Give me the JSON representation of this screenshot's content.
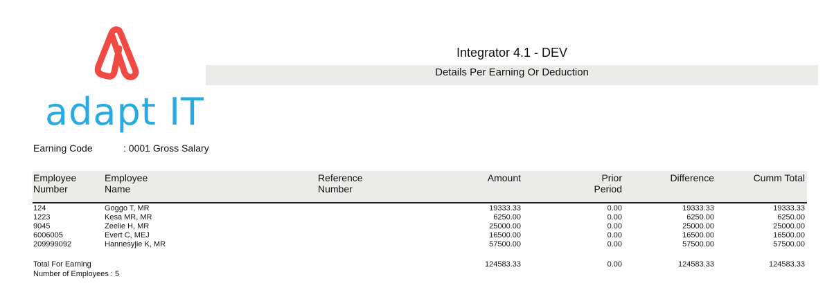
{
  "logo": {
    "text": "adapt IT",
    "colors": {
      "mark": "#ef4b43",
      "wordmark": "#29abe2"
    }
  },
  "header": {
    "title": "Integrator 4.1 - DEV",
    "subtitle": "Details Per Earning Or Deduction"
  },
  "earning": {
    "label": "Earning Code",
    "value": ": 0001 Gross Salary"
  },
  "table": {
    "columns": [
      [
        "Employee",
        "Number"
      ],
      [
        "Employee",
        "Name"
      ],
      [
        "Reference",
        "Number"
      ],
      [
        "Amount",
        ""
      ],
      [
        "Prior",
        "Period"
      ],
      [
        "Difference",
        ""
      ],
      [
        "Cumm Total",
        ""
      ]
    ],
    "rows": [
      [
        "124",
        "Goggo T, MR",
        "",
        "19333.33",
        "0.00",
        "19333.33",
        "19333.33"
      ],
      [
        "1223",
        "Kesa MR, MR",
        "",
        "6250.00",
        "0.00",
        "6250.00",
        "6250.00"
      ],
      [
        "9045",
        "Zeelie H, MR",
        "",
        "25000.00",
        "0.00",
        "25000.00",
        "25000.00"
      ],
      [
        "6006005",
        "Evert C, MEJ",
        "",
        "16500.00",
        "0.00",
        "16500.00",
        "16500.00"
      ],
      [
        "209999092",
        "Hannesyjie K, MR",
        "",
        "57500.00",
        "0.00",
        "57500.00",
        "57500.00"
      ]
    ],
    "total": {
      "label": "Total For Earning",
      "amount": "124583.33",
      "prior": "0.00",
      "difference": "124583.33",
      "cumm": "124583.33"
    },
    "count_label": "Number of Employees : 5"
  }
}
